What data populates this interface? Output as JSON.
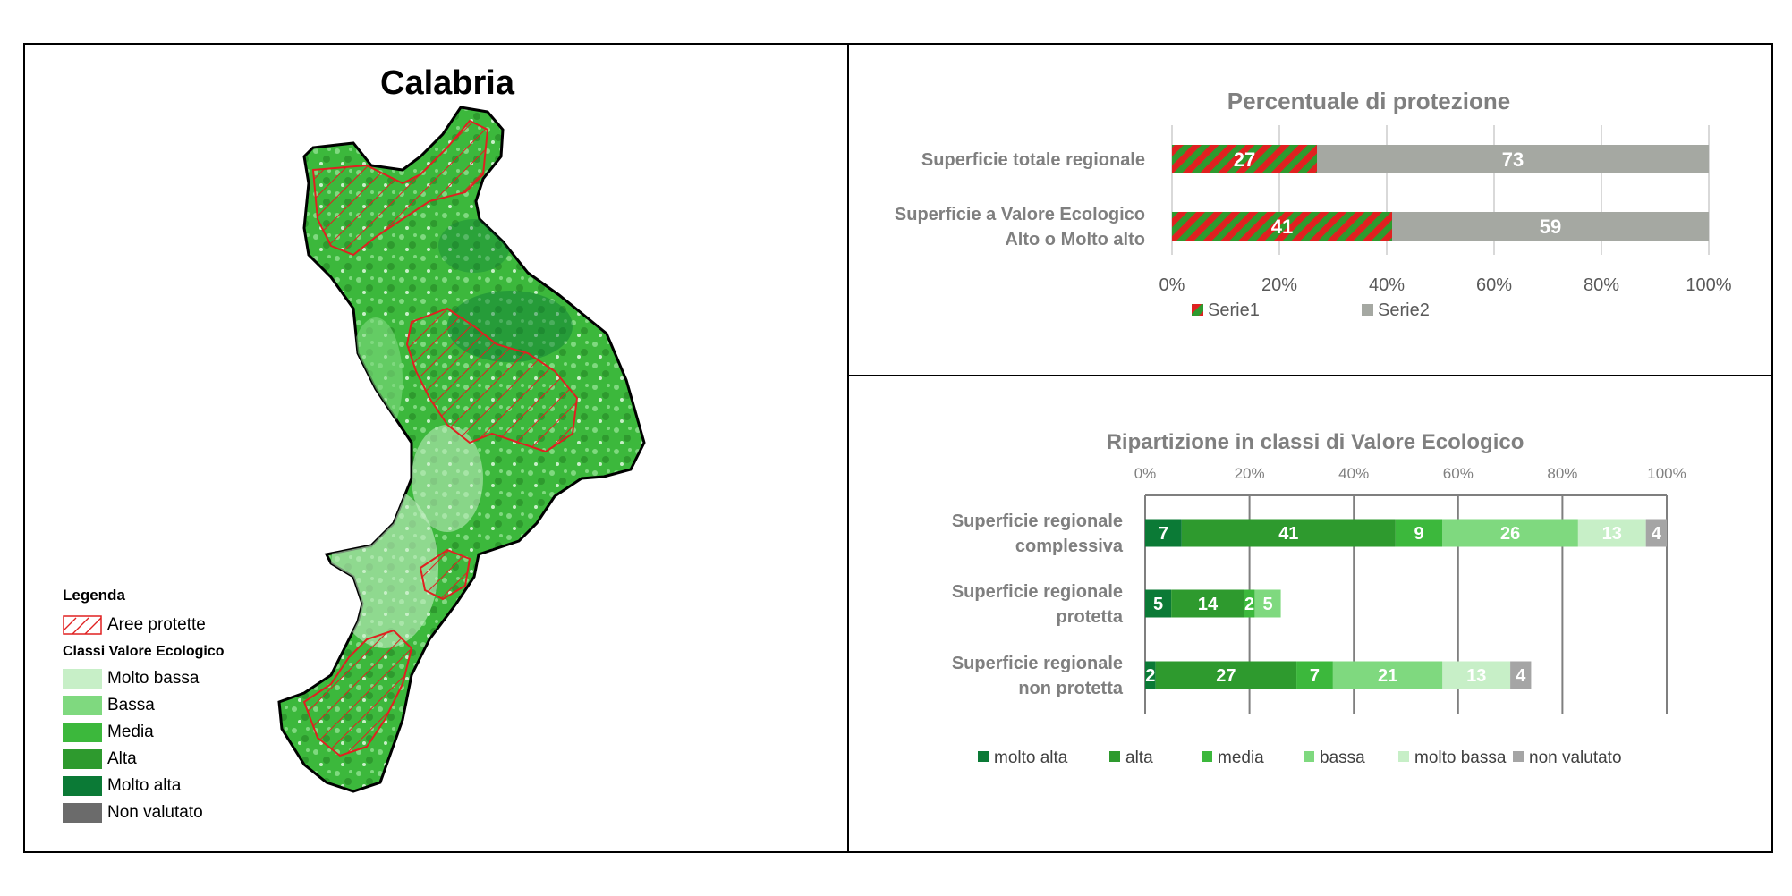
{
  "map": {
    "title": "Calabria",
    "legend": {
      "heading": "Legenda",
      "protected_label": "Aree protette",
      "classes_heading": "Classi Valore Ecologico",
      "classes": [
        {
          "label": "Molto bassa",
          "color": "#c7efc7"
        },
        {
          "label": "Bassa",
          "color": "#7fd97f"
        },
        {
          "label": "Media",
          "color": "#3cb83c"
        },
        {
          "label": "Alta",
          "color": "#2e9a2e"
        },
        {
          "label": "Molto alta",
          "color": "#0b7a36"
        },
        {
          "label": "Non valutato",
          "color": "#6b6b6b"
        }
      ]
    }
  },
  "chart_data": [
    {
      "type": "bar",
      "orientation": "horizontal",
      "stacked": true,
      "title": "Percentuale di protezione",
      "categories": [
        "Superficie totale regionale",
        "Superficie a Valore Ecologico Alto o Molto alto"
      ],
      "category_lines": [
        [
          "Superficie totale regionale"
        ],
        [
          "Superficie a Valore Ecologico",
          "Alto o Molto alto"
        ]
      ],
      "series": [
        {
          "name": "Serie1",
          "values": [
            27,
            41
          ],
          "color": "#2e9a2e",
          "hatch": "#e02020"
        },
        {
          "name": "Serie2",
          "values": [
            73,
            59
          ],
          "color": "#a5a8a2"
        }
      ],
      "xlim": [
        0,
        100
      ],
      "xticks": [
        "0%",
        "20%",
        "40%",
        "60%",
        "80%",
        "100%"
      ],
      "grid": true,
      "legend": "bottom"
    },
    {
      "type": "bar",
      "orientation": "horizontal",
      "stacked": true,
      "title": "Ripartizione in classi di Valore Ecologico",
      "categories": [
        "Superficie regionale complessiva",
        "Superficie regionale protetta",
        "Superficie regionale non protetta"
      ],
      "category_lines": [
        [
          "Superficie regionale",
          "complessiva"
        ],
        [
          "Superficie regionale",
          "protetta"
        ],
        [
          "Superficie regionale",
          "non protetta"
        ]
      ],
      "series": [
        {
          "name": "molto alta",
          "values": [
            7,
            5,
            2
          ],
          "color": "#0b7a36"
        },
        {
          "name": "alta",
          "values": [
            41,
            14,
            27
          ],
          "color": "#2e9a2e"
        },
        {
          "name": "media",
          "values": [
            9,
            2,
            7
          ],
          "color": "#3cb83c"
        },
        {
          "name": "bassa",
          "values": [
            26,
            5,
            21
          ],
          "color": "#7fd97f"
        },
        {
          "name": "molto bassa",
          "values": [
            13,
            0,
            13
          ],
          "color": "#c7efc7"
        },
        {
          "name": "non valutato",
          "values": [
            4,
            0,
            4
          ],
          "color": "#a5a5a5"
        }
      ],
      "xlim": [
        0,
        100
      ],
      "xticks": [
        "0%",
        "20%",
        "40%",
        "60%",
        "80%",
        "100%"
      ],
      "grid": true,
      "legend": "bottom"
    }
  ]
}
